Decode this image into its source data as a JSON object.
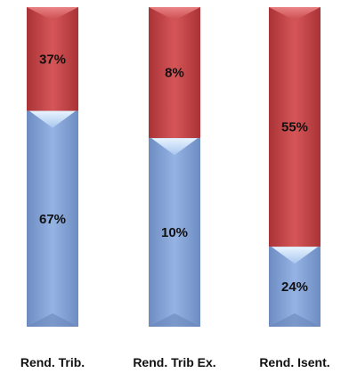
{
  "chart_data": {
    "type": "bar",
    "stacked": true,
    "categories": [
      "Rend. Trib.",
      "Rend. Trib Ex.",
      "Rend. Isent."
    ],
    "series": [
      {
        "values": [
          67,
          10,
          24
        ],
        "labels": [
          "67%",
          "10%",
          "24%"
        ],
        "color": "#7f9fd3"
      },
      {
        "values": [
          37,
          8,
          55
        ],
        "labels": [
          "37%",
          "8%",
          "55%"
        ],
        "color": "#c8494b"
      }
    ],
    "boundary_fraction_from_top": [
      0.325,
      0.41,
      0.75
    ],
    "grid": false,
    "legend": "none"
  }
}
